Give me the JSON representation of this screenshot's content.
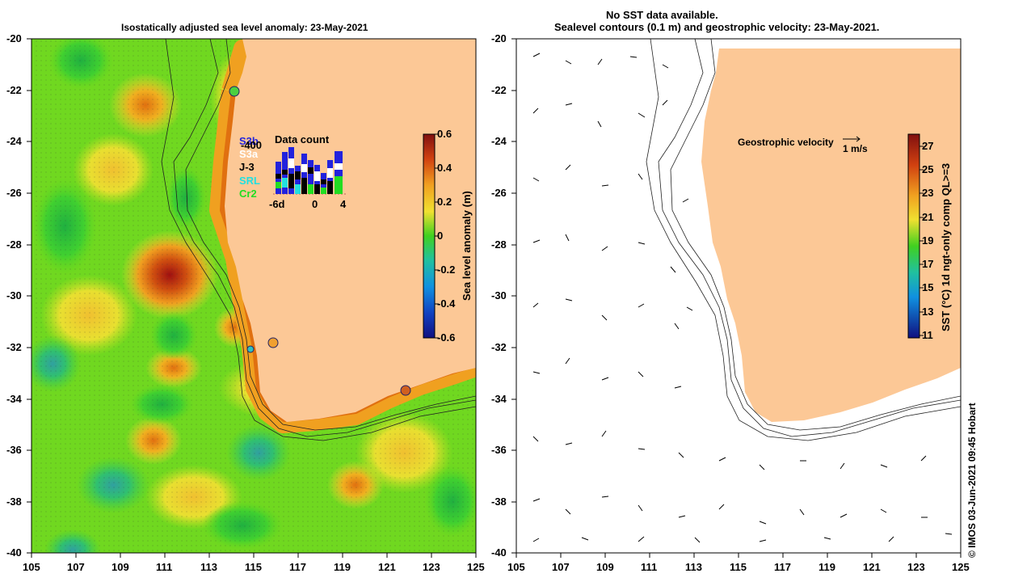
{
  "left_panel": {
    "title": "Isostatically adjusted sea level anomaly: 23-May-2021",
    "colorbar_label": "Sea level anomaly (m)",
    "colorbar_ticks": [
      "0.6",
      "0.4",
      "0.2",
      "0",
      "-0.2",
      "-0.4",
      "-0.6"
    ],
    "inset": {
      "title": "Data count",
      "x_ticks": [
        "-6d",
        "0",
        "4"
      ],
      "satellites": [
        {
          "name": "S3b",
          "color": "#2222dd"
        },
        {
          "name": "S3a",
          "color": "#ffffff"
        },
        {
          "name": "J-3",
          "color": "#000000"
        },
        {
          "name": "SRL",
          "color": "#22e0e0"
        },
        {
          "name": "Cr2",
          "color": "#22dd22"
        }
      ],
      "overlap_label": "-400"
    }
  },
  "right_panel": {
    "title_line1": "No SST data available.",
    "title_line2": "Sealevel contours (0.1 m) and geostrophic velocity: 23-May-2021.",
    "velocity_label": "Geostrophic velocity",
    "velocity_scale": "1 m/s",
    "colorbar_label": "SST (°C) 1d ngt-only comp QL>=3",
    "colorbar_ticks": [
      "27",
      "25",
      "23",
      "21",
      "19",
      "17",
      "15",
      "13",
      "11"
    ]
  },
  "axes": {
    "lat_ticks": [
      "-20",
      "-22",
      "-24",
      "-26",
      "-28",
      "-30",
      "-32",
      "-34",
      "-36",
      "-38",
      "-40"
    ],
    "lon_ticks": [
      "105",
      "107",
      "109",
      "111",
      "113",
      "115",
      "117",
      "119",
      "121",
      "123",
      "125"
    ]
  },
  "credit": "© IMOS 03-Jun-2021 09:45 Hobart",
  "colors": {
    "land": "#fcc896",
    "positive": "#e06010",
    "neutral": "#7cdd10",
    "negative": "#1080c0"
  }
}
